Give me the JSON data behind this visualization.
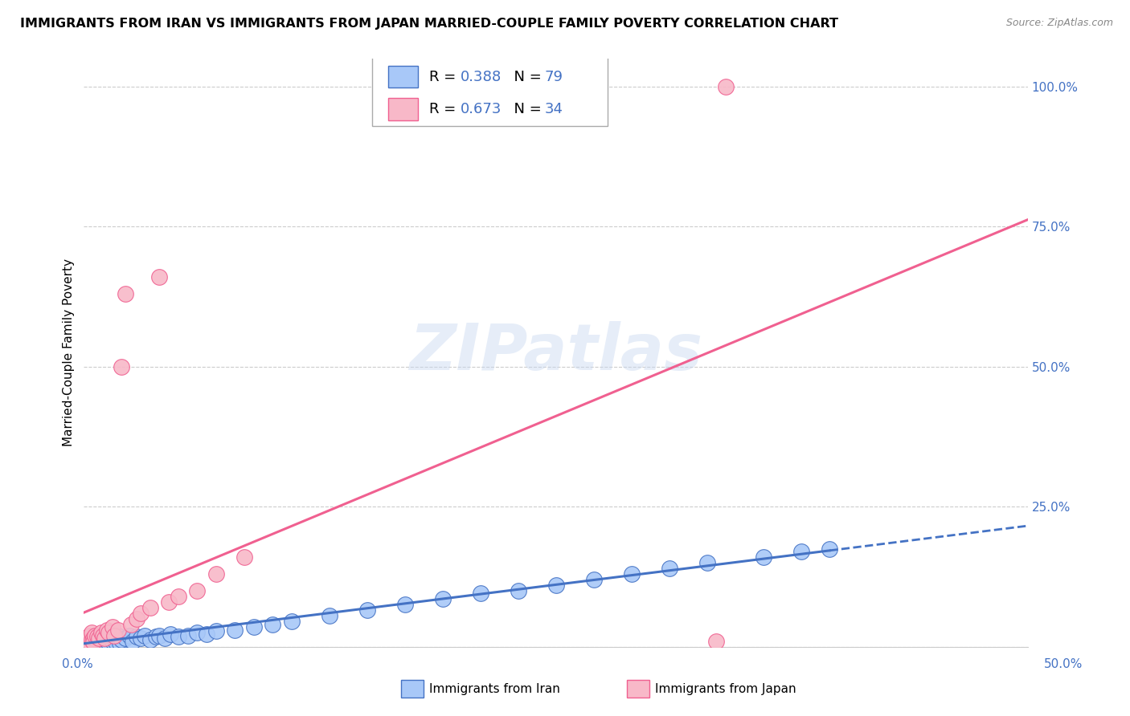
{
  "title": "IMMIGRANTS FROM IRAN VS IMMIGRANTS FROM JAPAN MARRIED-COUPLE FAMILY POVERTY CORRELATION CHART",
  "source": "Source: ZipAtlas.com",
  "ylabel": "Married-Couple Family Poverty",
  "watermark": "ZIPatlas",
  "iran_color": "#a8c8f8",
  "japan_color": "#f8b8c8",
  "iran_line_color": "#4472c4",
  "japan_line_color": "#f06090",
  "iran_R": 0.388,
  "iran_N": 79,
  "japan_R": 0.673,
  "japan_N": 34,
  "xlim": [
    0.0,
    0.5
  ],
  "ylim": [
    0.0,
    1.05
  ],
  "iran_x": [
    0.001,
    0.001,
    0.001,
    0.002,
    0.002,
    0.002,
    0.002,
    0.003,
    0.003,
    0.003,
    0.003,
    0.004,
    0.004,
    0.004,
    0.005,
    0.005,
    0.005,
    0.006,
    0.006,
    0.006,
    0.007,
    0.007,
    0.008,
    0.008,
    0.009,
    0.009,
    0.01,
    0.01,
    0.011,
    0.012,
    0.013,
    0.014,
    0.015,
    0.016,
    0.017,
    0.018,
    0.019,
    0.02,
    0.022,
    0.024,
    0.026,
    0.028,
    0.03,
    0.032,
    0.035,
    0.038,
    0.04,
    0.043,
    0.046,
    0.05,
    0.055,
    0.06,
    0.065,
    0.07,
    0.08,
    0.09,
    0.1,
    0.11,
    0.13,
    0.15,
    0.17,
    0.19,
    0.21,
    0.23,
    0.25,
    0.27,
    0.29,
    0.31,
    0.33,
    0.36,
    0.38,
    0.395,
    0.001,
    0.002,
    0.003,
    0.004,
    0.005,
    0.006,
    0.007
  ],
  "iran_y": [
    0.005,
    0.008,
    0.012,
    0.003,
    0.007,
    0.01,
    0.015,
    0.004,
    0.008,
    0.013,
    0.018,
    0.005,
    0.009,
    0.016,
    0.004,
    0.01,
    0.018,
    0.006,
    0.012,
    0.02,
    0.008,
    0.015,
    0.007,
    0.018,
    0.005,
    0.016,
    0.01,
    0.022,
    0.008,
    0.012,
    0.006,
    0.015,
    0.01,
    0.018,
    0.008,
    0.02,
    0.006,
    0.012,
    0.015,
    0.02,
    0.01,
    0.018,
    0.015,
    0.02,
    0.012,
    0.018,
    0.02,
    0.015,
    0.022,
    0.018,
    0.02,
    0.025,
    0.022,
    0.028,
    0.03,
    0.035,
    0.04,
    0.045,
    0.055,
    0.065,
    0.075,
    0.085,
    0.095,
    0.1,
    0.11,
    0.12,
    0.13,
    0.14,
    0.15,
    0.16,
    0.17,
    0.175,
    0.002,
    0.004,
    0.006,
    0.008,
    0.01,
    0.012,
    0.014
  ],
  "japan_x": [
    0.001,
    0.002,
    0.002,
    0.003,
    0.003,
    0.004,
    0.004,
    0.005,
    0.005,
    0.006,
    0.007,
    0.008,
    0.009,
    0.01,
    0.011,
    0.012,
    0.013,
    0.015,
    0.016,
    0.018,
    0.02,
    0.022,
    0.025,
    0.028,
    0.03,
    0.035,
    0.04,
    0.045,
    0.05,
    0.06,
    0.07,
    0.085,
    0.335,
    0.34
  ],
  "japan_y": [
    0.005,
    0.01,
    0.015,
    0.008,
    0.02,
    0.012,
    0.025,
    0.015,
    0.008,
    0.02,
    0.018,
    0.015,
    0.025,
    0.02,
    0.015,
    0.03,
    0.025,
    0.035,
    0.02,
    0.03,
    0.5,
    0.63,
    0.04,
    0.05,
    0.06,
    0.07,
    0.66,
    0.08,
    0.09,
    0.1,
    0.13,
    0.16,
    0.01,
    1.0
  ]
}
